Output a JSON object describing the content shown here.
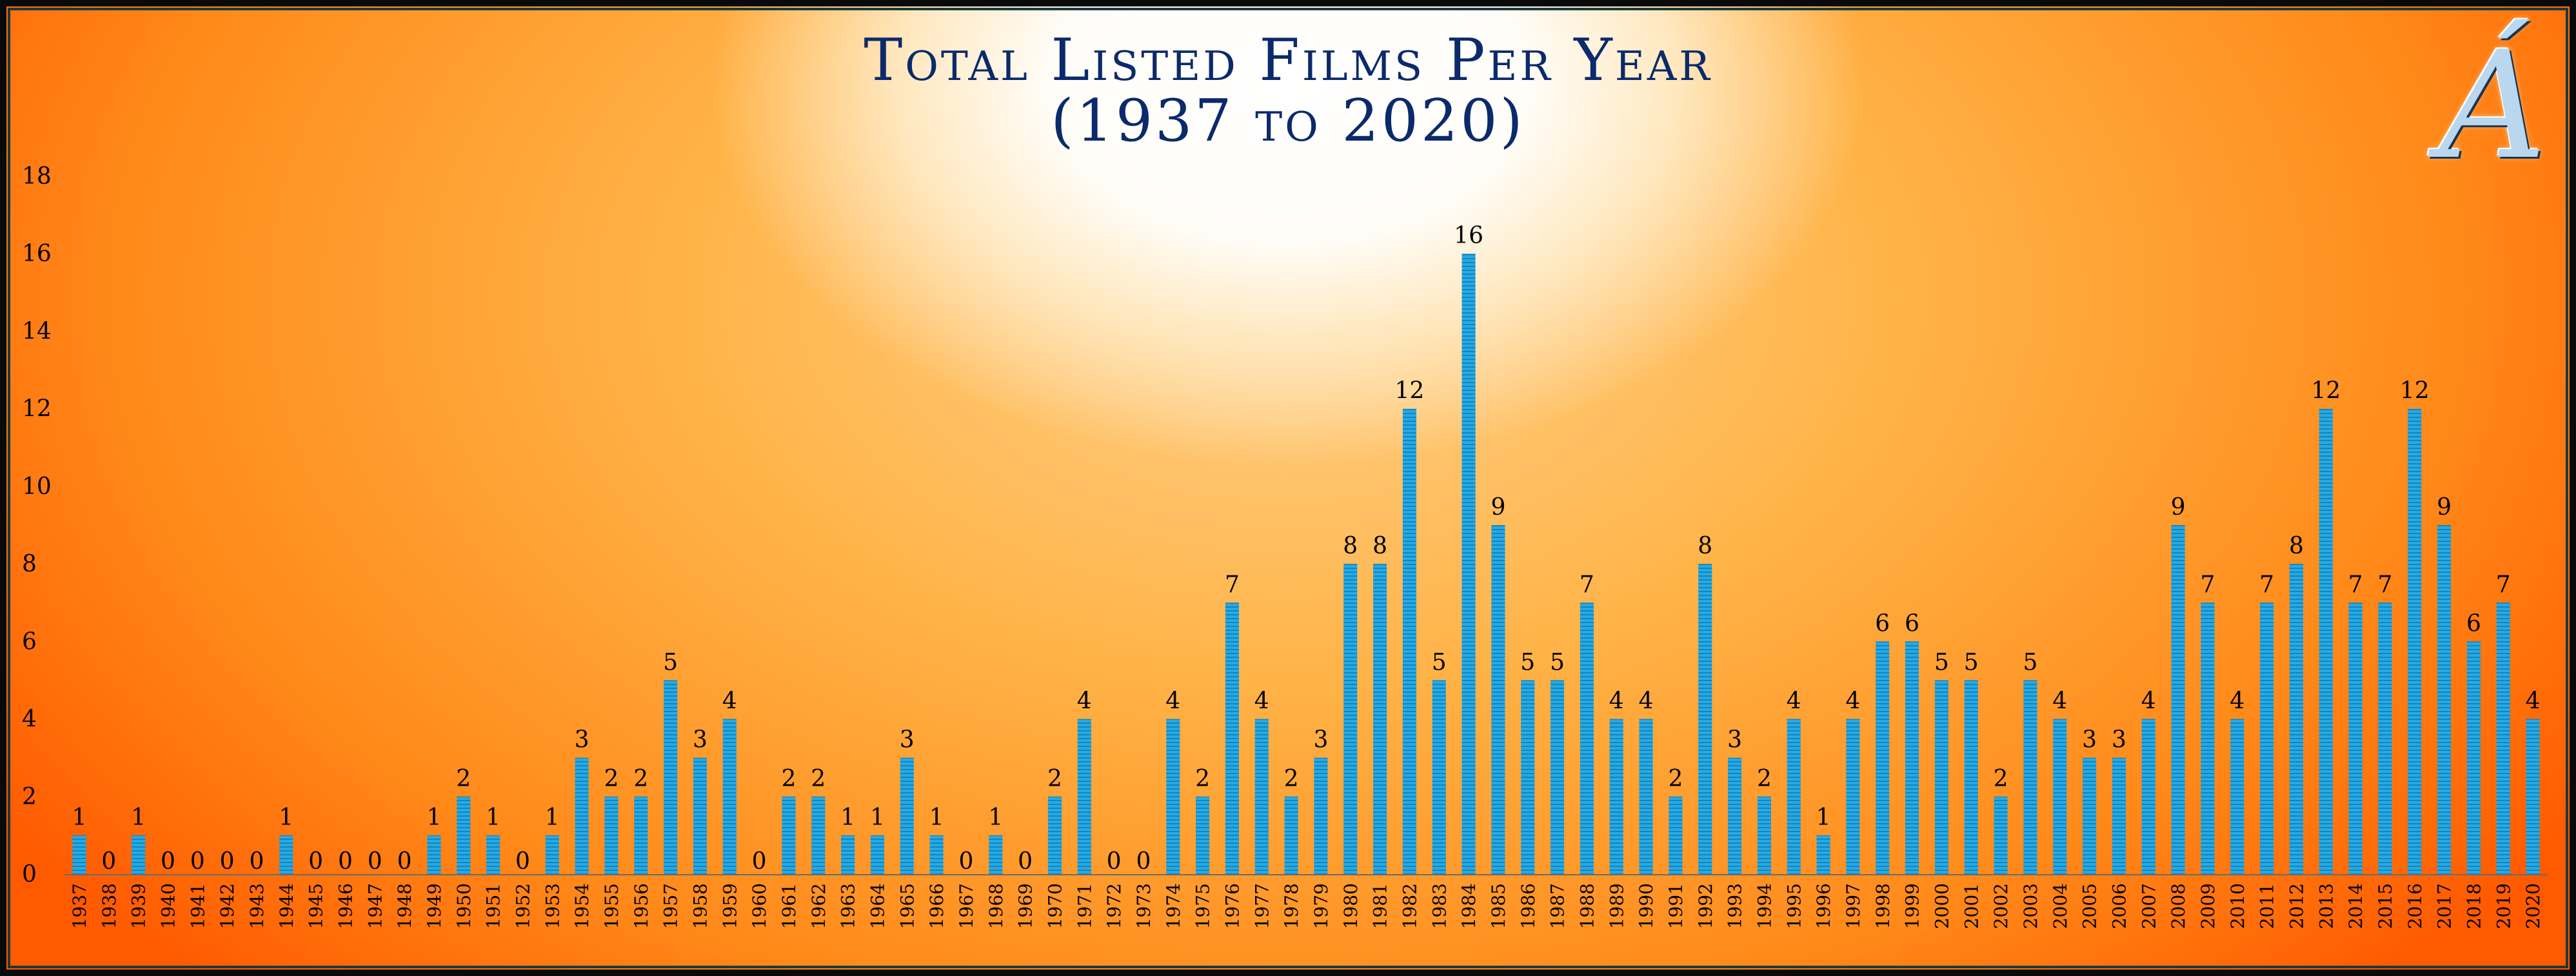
{
  "chart_data": {
    "type": "bar",
    "title": "Total Listed Films Per Year",
    "subtitle": "(1937 to 2020)",
    "xlabel": "",
    "ylabel": "",
    "ylim": [
      0,
      18
    ],
    "yticks": [
      0,
      2,
      4,
      6,
      8,
      10,
      12,
      14,
      16,
      18
    ],
    "grid": false,
    "bar_color": "#29a9e1",
    "categories": [
      "1937",
      "1938",
      "1939",
      "1940",
      "1941",
      "1942",
      "1943",
      "1944",
      "1945",
      "1946",
      "1947",
      "1948",
      "1949",
      "1950",
      "1951",
      "1952",
      "1953",
      "1954",
      "1955",
      "1956",
      "1957",
      "1958",
      "1959",
      "1960",
      "1961",
      "1962",
      "1963",
      "1964",
      "1965",
      "1966",
      "1967",
      "1968",
      "1969",
      "1970",
      "1971",
      "1972",
      "1973",
      "1974",
      "1975",
      "1976",
      "1977",
      "1978",
      "1979",
      "1980",
      "1981",
      "1982",
      "1983",
      "1984",
      "1985",
      "1986",
      "1987",
      "1988",
      "1989",
      "1990",
      "1991",
      "1992",
      "1993",
      "1994",
      "1995",
      "1996",
      "1997",
      "1998",
      "1999",
      "2000",
      "2001",
      "2002",
      "2003",
      "2004",
      "2005",
      "2006",
      "2007",
      "2008",
      "2009",
      "2010",
      "2011",
      "2012",
      "2013",
      "2014",
      "2015",
      "2016",
      "2017",
      "2018",
      "2019",
      "2020"
    ],
    "values": [
      1,
      0,
      1,
      0,
      0,
      0,
      0,
      1,
      0,
      0,
      0,
      0,
      1,
      2,
      1,
      0,
      1,
      3,
      2,
      2,
      5,
      3,
      4,
      0,
      2,
      2,
      1,
      1,
      3,
      1,
      0,
      1,
      0,
      2,
      4,
      0,
      0,
      4,
      2,
      7,
      4,
      2,
      3,
      8,
      8,
      12,
      5,
      16,
      9,
      5,
      5,
      7,
      4,
      4,
      2,
      8,
      3,
      2,
      4,
      1,
      4,
      6,
      6,
      5,
      5,
      2,
      5,
      4,
      3,
      3,
      4,
      9,
      7,
      4,
      7,
      8,
      12,
      7,
      7,
      12,
      9,
      6,
      7,
      4
    ]
  },
  "logo": {
    "text": "Á",
    "icon": "accented-a-logo-icon"
  }
}
